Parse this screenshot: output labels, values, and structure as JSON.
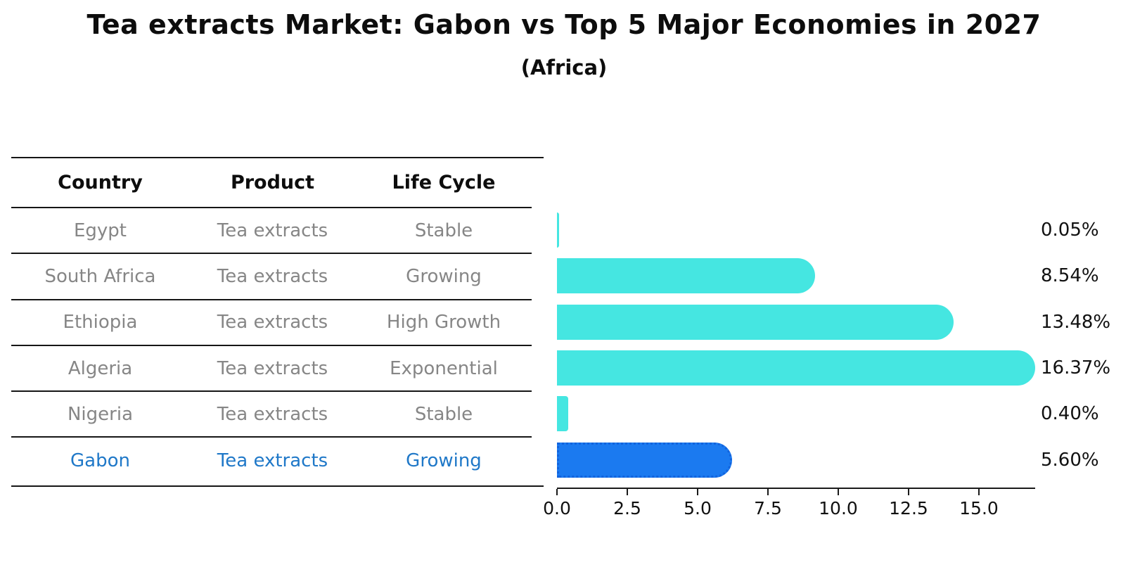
{
  "page": {
    "title": "Tea extracts Market: Gabon vs Top 5 Major Economies in 2027",
    "subtitle": "(Africa)"
  },
  "table": {
    "headers": [
      "Country",
      "Product",
      "Life Cycle"
    ],
    "rows": [
      {
        "country": "Egypt",
        "product": "Tea extracts",
        "life_cycle": "Stable",
        "highlight": false
      },
      {
        "country": "South Africa",
        "product": "Tea extracts",
        "life_cycle": "Growing",
        "highlight": false
      },
      {
        "country": "Ethiopia",
        "product": "Tea extracts",
        "life_cycle": "High Growth",
        "highlight": false
      },
      {
        "country": "Algeria",
        "product": "Tea extracts",
        "life_cycle": "Exponential",
        "highlight": false
      },
      {
        "country": "Nigeria",
        "product": "Tea extracts",
        "life_cycle": "Stable",
        "highlight": false
      },
      {
        "country": "Gabon",
        "product": "Tea extracts",
        "life_cycle": "Growing",
        "highlight": true
      }
    ]
  },
  "chart_data": {
    "type": "bar",
    "orientation": "horizontal",
    "title": "Tea extracts Market: Gabon vs Top 5 Major Economies in 2027",
    "subtitle": "(Africa)",
    "categories": [
      "Egypt",
      "South Africa",
      "Ethiopia",
      "Algeria",
      "Nigeria",
      "Gabon"
    ],
    "values": [
      0.05,
      8.54,
      13.48,
      16.37,
      0.4,
      5.6
    ],
    "value_labels": [
      "0.05%",
      "8.54%",
      "13.48%",
      "16.37%",
      "0.40%",
      "5.60%"
    ],
    "highlighted_category": "Gabon",
    "highlight_index": 5,
    "xlim": [
      0,
      17
    ],
    "xticks": [
      0,
      2.5,
      5,
      7.5,
      10,
      12.5,
      15
    ],
    "xtick_labels": [
      "0.0",
      "2.5",
      "5.0",
      "7.5",
      "10.0",
      "12.5",
      "15.0"
    ],
    "grid": false,
    "legend": false
  },
  "colors": {
    "bar": "#45E6E1",
    "highlight_bar": "#1B7AF0",
    "highlight_bar_edge": "#1263DD",
    "highlight_text": "#1F78C8",
    "row_text": "#868686",
    "axis": "#1A1A1A"
  }
}
